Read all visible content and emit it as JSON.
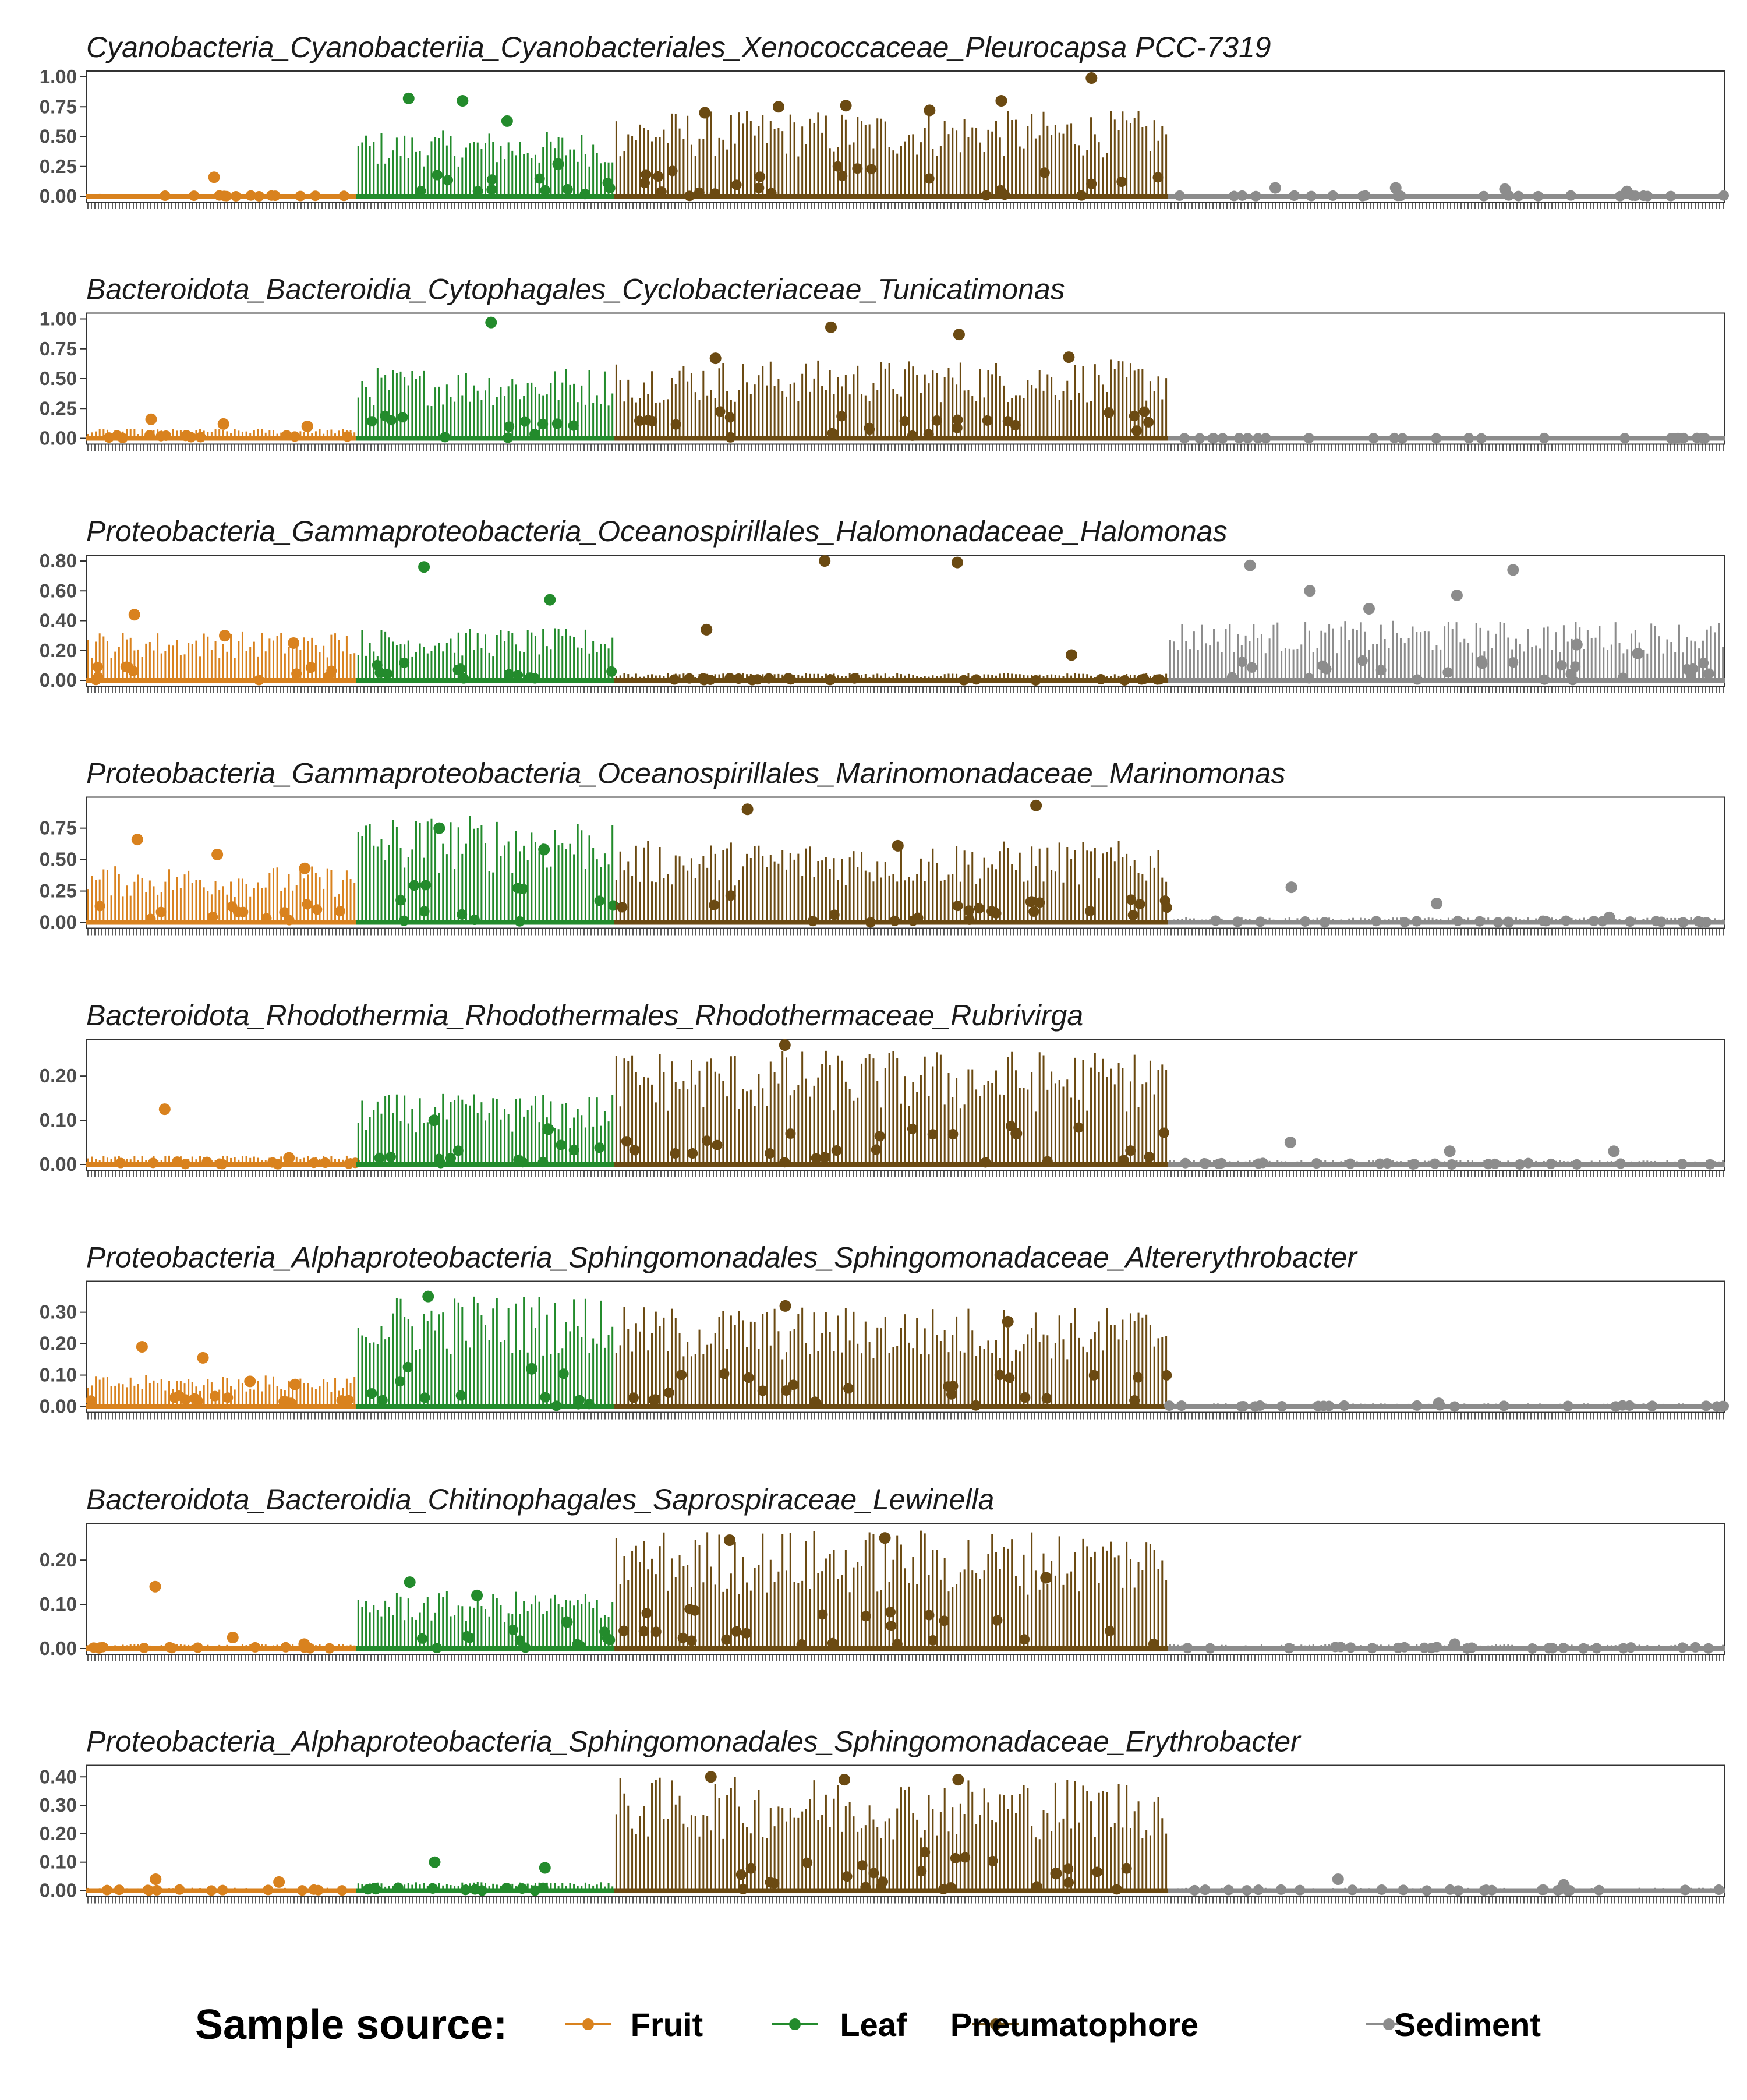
{
  "legend": {
    "title": "Sample source:",
    "items": [
      {
        "label": "Fruit",
        "color": "#D9821E"
      },
      {
        "label": "Leaf",
        "color": "#238B2C"
      },
      {
        "label": "Pneumatophore",
        "color": "#6B4A12"
      },
      {
        "label": "Sediment",
        "color": "#8C8C8C"
      }
    ]
  },
  "chart_data": [
    {
      "type": "bar",
      "title": "Cyanobacteria_Cyanobacteriia_Cyanobacteriales_Xenococcaceae_Pleurocapsa PCC-7319",
      "ylim": [
        0,
        1.0
      ],
      "yticks": [
        0,
        0.25,
        0.5,
        0.75,
        1.0
      ],
      "ytick_labels": [
        "0.00",
        "0.25",
        "0.50",
        "0.75",
        "1.00"
      ],
      "grid": false,
      "series": [
        {
          "name": "Fruit",
          "bar_max": 0.02,
          "outliers": [
            0.16
          ]
        },
        {
          "name": "Leaf",
          "bar_max": 0.55,
          "outliers": [
            0.82,
            0.8,
            0.63,
            0.27
          ]
        },
        {
          "name": "Pneumatophore",
          "bar_max": 0.72,
          "outliers": [
            0.7,
            0.75,
            0.76,
            0.72,
            0.8,
            0.99
          ]
        },
        {
          "name": "Sediment",
          "bar_max": 0.02,
          "outliers": [
            0.07,
            0.07,
            0.06,
            0.04
          ]
        }
      ]
    },
    {
      "type": "bar",
      "title": "Bacteroidota_Bacteroidia_Cytophagales_Cyclobacteriaceae_Tunicatimonas",
      "ylim": [
        0,
        1.0
      ],
      "yticks": [
        0,
        0.25,
        0.5,
        0.75,
        1.0
      ],
      "ytick_labels": [
        "0.00",
        "0.25",
        "0.50",
        "0.75",
        "1.00"
      ],
      "grid": false,
      "series": [
        {
          "name": "Fruit",
          "bar_max": 0.08,
          "outliers": [
            0.16,
            0.12,
            0.1
          ]
        },
        {
          "name": "Leaf",
          "bar_max": 0.6,
          "outliers": [
            0.97
          ]
        },
        {
          "name": "Pneumatophore",
          "bar_max": 0.66,
          "outliers": [
            0.67,
            0.93,
            0.87,
            0.68
          ]
        },
        {
          "name": "Sediment",
          "bar_max": 0.01,
          "outliers": []
        }
      ]
    },
    {
      "type": "bar",
      "title": "Proteobacteria_Gammaproteobacteria_Oceanospirillales_Halomonadaceae_Halomonas",
      "ylim": [
        0,
        0.8
      ],
      "yticks": [
        0,
        0.2,
        0.4,
        0.6,
        0.8
      ],
      "ytick_labels": [
        "0.00",
        "0.20",
        "0.40",
        "0.60",
        "0.80"
      ],
      "grid": false,
      "series": [
        {
          "name": "Fruit",
          "bar_max": 0.33,
          "outliers": [
            0.44,
            0.3,
            0.25
          ]
        },
        {
          "name": "Leaf",
          "bar_max": 0.35,
          "outliers": [
            0.76,
            0.54
          ]
        },
        {
          "name": "Pneumatophore",
          "bar_max": 0.05,
          "outliers": [
            0.34,
            0.8,
            0.79,
            0.17
          ]
        },
        {
          "name": "Sediment",
          "bar_max": 0.4,
          "outliers": [
            0.77,
            0.6,
            0.48,
            0.57,
            0.74,
            0.24,
            0.18
          ]
        }
      ]
    },
    {
      "type": "bar",
      "title": "Proteobacteria_Gammaproteobacteria_Oceanospirillales_Marinomonadaceae_Marinomonas",
      "ylim": [
        0,
        0.95
      ],
      "yticks": [
        0,
        0.25,
        0.5,
        0.75
      ],
      "ytick_labels": [
        "0.00",
        "0.25",
        "0.50",
        "0.75"
      ],
      "grid": false,
      "series": [
        {
          "name": "Fruit",
          "bar_max": 0.45,
          "outliers": [
            0.66,
            0.54,
            0.43
          ]
        },
        {
          "name": "Leaf",
          "bar_max": 0.86,
          "outliers": [
            0.75,
            0.58
          ]
        },
        {
          "name": "Pneumatophore",
          "bar_max": 0.65,
          "outliers": [
            0.9,
            0.61,
            0.93
          ]
        },
        {
          "name": "Sediment",
          "bar_max": 0.04,
          "outliers": [
            0.28,
            0.15,
            0.04
          ]
        }
      ]
    },
    {
      "type": "bar",
      "title": "Bacteroidota_Rhodothermia_Rhodothermales_Rhodothermaceae_Rubrivirga",
      "ylim": [
        0,
        0.27
      ],
      "yticks": [
        0,
        0.1,
        0.2
      ],
      "ytick_labels": [
        "0.00",
        "0.10",
        "0.20"
      ],
      "grid": false,
      "series": [
        {
          "name": "Fruit",
          "bar_max": 0.02,
          "outliers": [
            0.125,
            0.015
          ]
        },
        {
          "name": "Leaf",
          "bar_max": 0.16,
          "outliers": [
            0.1,
            0.08
          ]
        },
        {
          "name": "Pneumatophore",
          "bar_max": 0.26,
          "outliers": [
            0.27,
            0.07
          ]
        },
        {
          "name": "Sediment",
          "bar_max": 0.01,
          "outliers": [
            0.05,
            0.03,
            0.03
          ]
        }
      ]
    },
    {
      "type": "bar",
      "title": "Proteobacteria_Alphaproteobacteria_Sphingomonadales_Sphingomonadaceae_Altererythrobacter",
      "ylim": [
        0,
        0.38
      ],
      "yticks": [
        0,
        0.1,
        0.2,
        0.3
      ],
      "ytick_labels": [
        "0.00",
        "0.10",
        "0.20",
        "0.30"
      ],
      "grid": false,
      "series": [
        {
          "name": "Fruit",
          "bar_max": 0.1,
          "outliers": [
            0.19,
            0.155,
            0.08,
            0.07
          ]
        },
        {
          "name": "Leaf",
          "bar_max": 0.36,
          "outliers": [
            0.35,
            0.12
          ]
        },
        {
          "name": "Pneumatophore",
          "bar_max": 0.32,
          "outliers": [
            0.32,
            0.27
          ]
        },
        {
          "name": "Sediment",
          "bar_max": 0.01,
          "outliers": [
            0.01
          ]
        }
      ]
    },
    {
      "type": "bar",
      "title": "Bacteroidota_Bacteroidia_Chitinophagales_Saprospiraceae_Lewinella",
      "ylim": [
        0,
        0.27
      ],
      "yticks": [
        0,
        0.1,
        0.2
      ],
      "ytick_labels": [
        "0.00",
        "0.10",
        "0.20"
      ],
      "grid": false,
      "series": [
        {
          "name": "Fruit",
          "bar_max": 0.01,
          "outliers": [
            0.14,
            0.025,
            0.01
          ]
        },
        {
          "name": "Leaf",
          "bar_max": 0.13,
          "outliers": [
            0.15,
            0.12,
            0.06
          ]
        },
        {
          "name": "Pneumatophore",
          "bar_max": 0.27,
          "outliers": [
            0.245,
            0.25,
            0.16
          ]
        },
        {
          "name": "Sediment",
          "bar_max": 0.01,
          "outliers": [
            0.01
          ]
        }
      ]
    },
    {
      "type": "bar",
      "title": "Proteobacteria_Alphaproteobacteria_Sphingomonadales_Sphingomonadaceae_Erythrobacter",
      "ylim": [
        0,
        0.42
      ],
      "yticks": [
        0,
        0.1,
        0.2,
        0.3,
        0.4
      ],
      "ytick_labels": [
        "0.00",
        "0.10",
        "0.20",
        "0.30",
        "0.40"
      ],
      "grid": false,
      "series": [
        {
          "name": "Fruit",
          "bar_max": 0.01,
          "outliers": [
            0.04,
            0.03
          ]
        },
        {
          "name": "Leaf",
          "bar_max": 0.03,
          "outliers": [
            0.1,
            0.08
          ]
        },
        {
          "name": "Pneumatophore",
          "bar_max": 0.4,
          "outliers": [
            0.4,
            0.39,
            0.39,
            0.06
          ]
        },
        {
          "name": "Sediment",
          "bar_max": 0.01,
          "outliers": [
            0.04,
            0.02
          ]
        }
      ]
    }
  ]
}
